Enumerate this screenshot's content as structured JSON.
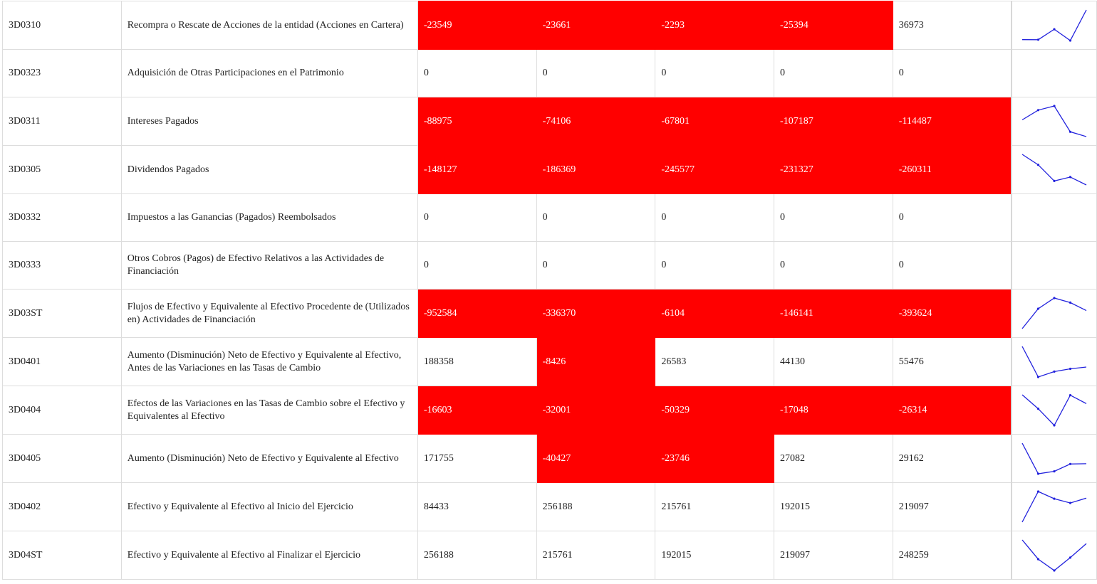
{
  "rows": [
    {
      "code": "3D0310",
      "label": "Recompra o Rescate de Acciones de la entidad (Acciones en Cartera)",
      "values": [
        "-23549",
        "-23661",
        "-2293",
        "-25394",
        "36973"
      ]
    },
    {
      "code": "3D0323",
      "label": "Adquisición de Otras Participaciones en el Patrimonio",
      "values": [
        "0",
        "0",
        "0",
        "0",
        "0"
      ]
    },
    {
      "code": "3D0311",
      "label": "Intereses Pagados",
      "values": [
        "-88975",
        "-74106",
        "-67801",
        "-107187",
        "-114487"
      ]
    },
    {
      "code": "3D0305",
      "label": "Dividendos Pagados",
      "values": [
        "-148127",
        "-186369",
        "-245577",
        "-231327",
        "-260311"
      ]
    },
    {
      "code": "3D0332",
      "label": "Impuestos a las Ganancias (Pagados) Reembolsados",
      "values": [
        "0",
        "0",
        "0",
        "0",
        "0"
      ]
    },
    {
      "code": "3D0333",
      "label": "Otros Cobros (Pagos) de Efectivo Relativos a las Actividades de Financiación",
      "values": [
        "0",
        "0",
        "0",
        "0",
        "0"
      ]
    },
    {
      "code": "3D03ST",
      "label": "Flujos de Efectivo y Equivalente al Efectivo Procedente de (Utilizados en) Actividades de Financiación",
      "values": [
        "-952584",
        "-336370",
        "-6104",
        "-146141",
        "-393624"
      ]
    },
    {
      "code": "3D0401",
      "label": "Aumento (Disminución) Neto de Efectivo y Equivalente al Efectivo, Antes de las Variaciones en las Tasas de Cambio",
      "values": [
        "188358",
        "-8426",
        "26583",
        "44130",
        "55476"
      ]
    },
    {
      "code": "3D0404",
      "label": "Efectos de las Variaciones en las Tasas de Cambio sobre el Efectivo y Equivalentes al Efectivo",
      "values": [
        "-16603",
        "-32001",
        "-50329",
        "-17048",
        "-26314"
      ]
    },
    {
      "code": "3D0405",
      "label": "Aumento (Disminución) Neto de Efectivo y Equivalente al Efectivo",
      "values": [
        "171755",
        "-40427",
        "-23746",
        "27082",
        "29162"
      ]
    },
    {
      "code": "3D0402",
      "label": "Efectivo y Equivalente al Efectivo al Inicio del Ejercicio",
      "values": [
        "84433",
        "256188",
        "215761",
        "192015",
        "219097"
      ]
    },
    {
      "code": "3D04ST",
      "label": "Efectivo y Equivalente al Efectivo al Finalizar el Ejercicio",
      "values": [
        "256188",
        "215761",
        "192015",
        "219097",
        "248259"
      ]
    }
  ],
  "colors": {
    "negative_bg": "#ff0000",
    "negative_text": "#ffffff",
    "sparkline": "#2222dd",
    "border": "#dddddd"
  }
}
